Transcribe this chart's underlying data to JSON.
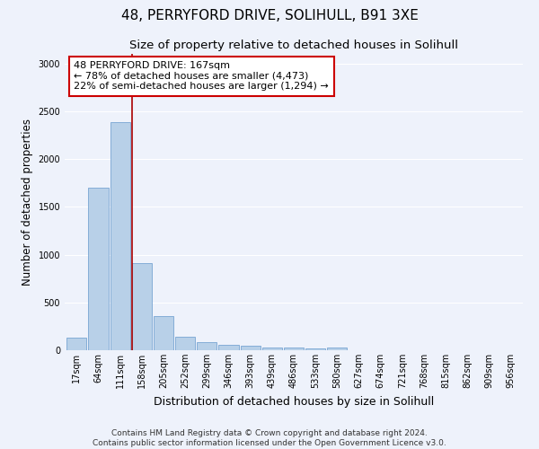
{
  "title": "48, PERRYFORD DRIVE, SOLIHULL, B91 3XE",
  "subtitle": "Size of property relative to detached houses in Solihull",
  "xlabel": "Distribution of detached houses by size in Solihull",
  "ylabel": "Number of detached properties",
  "bar_color": "#b8d0e8",
  "bar_edge_color": "#6699cc",
  "background_color": "#eef2fb",
  "grid_color": "#ffffff",
  "tick_labels": [
    "17sqm",
    "64sqm",
    "111sqm",
    "158sqm",
    "205sqm",
    "252sqm",
    "299sqm",
    "346sqm",
    "393sqm",
    "439sqm",
    "486sqm",
    "533sqm",
    "580sqm",
    "627sqm",
    "674sqm",
    "721sqm",
    "768sqm",
    "815sqm",
    "862sqm",
    "909sqm",
    "956sqm"
  ],
  "bar_values": [
    130,
    1700,
    2390,
    915,
    360,
    140,
    85,
    55,
    45,
    30,
    25,
    20,
    30,
    0,
    0,
    0,
    0,
    0,
    0,
    0,
    0
  ],
  "n_bins": 21,
  "vline_x": 2.57,
  "vline_color": "#aa0000",
  "annotation_text": "48 PERRYFORD DRIVE: 167sqm\n← 78% of detached houses are smaller (4,473)\n22% of semi-detached houses are larger (1,294) →",
  "annotation_box_color": "#ffffff",
  "annotation_box_edge": "#cc0000",
  "ylim": [
    0,
    3100
  ],
  "yticks": [
    0,
    500,
    1000,
    1500,
    2000,
    2500,
    3000
  ],
  "footer_text": "Contains HM Land Registry data © Crown copyright and database right 2024.\nContains public sector information licensed under the Open Government Licence v3.0.",
  "title_fontsize": 11,
  "subtitle_fontsize": 9.5,
  "ylabel_fontsize": 8.5,
  "xlabel_fontsize": 9,
  "tick_fontsize": 7,
  "annotation_fontsize": 8,
  "footer_fontsize": 6.5
}
